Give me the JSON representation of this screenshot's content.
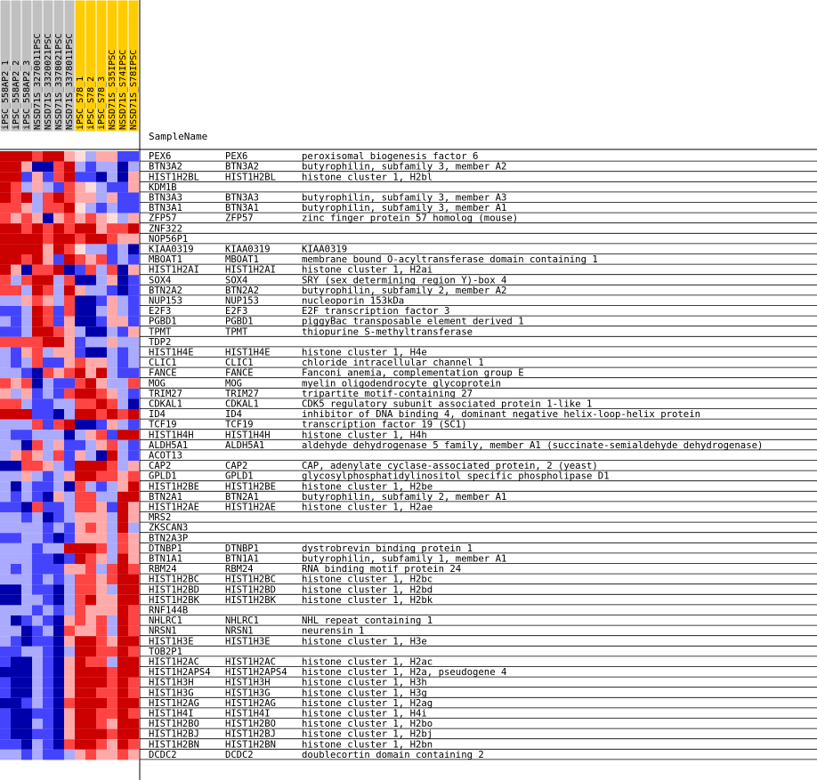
{
  "chart_data": {
    "type": "heatmap",
    "title": "SampleName",
    "columns": [
      "iPSC_558AP2_1",
      "iPSC_558AP2_2",
      "iPSC_558AP2_3",
      "NSSD71S_3270011PSC",
      "NSSD71S_3320021PSC",
      "NSSD71S_3378021PSC",
      "NSSD71S_3378011PSC",
      "iPSC_S78_1",
      "iPSC_S78_2",
      "iPSC_S78_3",
      "NSSD71S_S35IPSC",
      "NSSD71S_S74IPSC",
      "NSSD71S_S78IPSC"
    ],
    "column_colors": [
      "#c0c0c0",
      "#c0c0c0",
      "#c0c0c0",
      "#c0c0c0",
      "#c0c0c0",
      "#c0c0c0",
      "#c0c0c0",
      "#ffcc00",
      "#ffcc00",
      "#ffcc00",
      "#ffcc00",
      "#ffcc00",
      "#ffcc00"
    ],
    "rows": [
      {
        "name": "PEX6",
        "symbol": "PEX6",
        "desc": "peroxisomal biogenesis factor 6",
        "values": [
          3,
          3,
          3,
          2,
          3,
          3,
          1,
          0,
          -1,
          1,
          1,
          -2,
          -2
        ]
      },
      {
        "name": "BTN3A2",
        "symbol": "BTN3A2",
        "desc": "butyrophilin, subfamily 3, member A2",
        "values": [
          3,
          3,
          1,
          -3,
          -3,
          2,
          3,
          -1,
          -2,
          -1,
          -1,
          -3,
          -1
        ]
      },
      {
        "name": "HIST1H2BL",
        "symbol": "HIST1H2BL",
        "desc": "histone cluster 1, H2bl",
        "values": [
          3,
          3,
          -2,
          1,
          -2,
          2,
          3,
          -2,
          -2,
          -3,
          -1,
          -3,
          1
        ]
      },
      {
        "name": "KDM1B",
        "symbol": "",
        "desc": "",
        "values": [
          3,
          2,
          -1,
          1,
          -1,
          -2,
          2,
          1,
          0,
          -1,
          -2,
          -2,
          1
        ]
      },
      {
        "name": "BTN3A3",
        "symbol": "BTN3A3",
        "desc": "butyrophilin, subfamily 3, member A3",
        "values": [
          3,
          2,
          3,
          -1,
          2,
          3,
          2,
          1,
          1,
          -1,
          1,
          -2,
          -2
        ]
      },
      {
        "name": "BTN3A1",
        "symbol": "BTN3A1",
        "desc": "butyrophilin, subfamily 3, member A1",
        "values": [
          2,
          2,
          1,
          -1,
          2,
          2,
          3,
          0,
          -1,
          -2,
          -1,
          -2,
          -2
        ]
      },
      {
        "name": "ZFP57",
        "symbol": "ZFP57",
        "desc": "zinc finger protein 57 homolog (mouse)",
        "values": [
          2,
          1,
          2,
          1,
          -3,
          1,
          2,
          1,
          2,
          1,
          0,
          -1,
          1
        ]
      },
      {
        "name": "ZNF322",
        "symbol": "",
        "desc": "",
        "values": [
          3,
          3,
          2,
          3,
          2,
          3,
          2,
          3,
          3,
          1,
          2,
          2,
          3
        ]
      },
      {
        "name": "NOP56P1",
        "symbol": "",
        "desc": "",
        "values": [
          3,
          3,
          3,
          3,
          2,
          3,
          3,
          2,
          3,
          3,
          2,
          1,
          1
        ]
      },
      {
        "name": "KIAA0319",
        "symbol": "KIAA0319",
        "desc": "KIAA0319",
        "values": [
          3,
          3,
          3,
          3,
          1,
          3,
          2,
          0,
          -1,
          -1,
          -2,
          -1,
          -3
        ]
      },
      {
        "name": "MBOAT1",
        "symbol": "MBOAT1",
        "desc": "membrane bound O-acyltransferase domain containing 1",
        "values": [
          3,
          3,
          2,
          3,
          1,
          -2,
          3,
          2,
          1,
          2,
          -2,
          -1,
          -2
        ]
      },
      {
        "name": "HIST1H2AI",
        "symbol": "HIST1H2AI",
        "desc": "histone cluster 1, H2ai",
        "values": [
          3,
          1,
          -3,
          2,
          2,
          3,
          -3,
          -2,
          2,
          -1,
          2,
          -3,
          1
        ]
      },
      {
        "name": "SOX4",
        "symbol": "SOX4",
        "desc": "SRY (sex determining region Y)-box 4",
        "values": [
          2,
          -1,
          2,
          3,
          3,
          -1,
          2,
          -3,
          -3,
          -1,
          1,
          -3,
          -2
        ]
      },
      {
        "name": "BTN2A2",
        "symbol": "BTN2A2",
        "desc": "butyrophilin, subfamily 2, member A2",
        "values": [
          2,
          2,
          -1,
          3,
          2,
          -1,
          3,
          1,
          -1,
          -1,
          -2,
          -3,
          -2
        ]
      },
      {
        "name": "NUP153",
        "symbol": "NUP153",
        "desc": "nucleoporin 153kDa",
        "values": [
          -1,
          -1,
          1,
          2,
          1,
          -1,
          2,
          -3,
          -3,
          -2,
          1,
          -1,
          -2
        ]
      },
      {
        "name": "E2F3",
        "symbol": "E2F3",
        "desc": "E2F transcription factor 3",
        "values": [
          -2,
          -2,
          -1,
          3,
          2,
          -2,
          2,
          -3,
          -3,
          -1,
          1,
          -1,
          -2
        ]
      },
      {
        "name": "PGBD1",
        "symbol": "PGBD1",
        "desc": "piggyBac transposable element derived 1",
        "values": [
          -1,
          -2,
          -1,
          3,
          2,
          -2,
          1,
          -3,
          -3,
          -2,
          1,
          1,
          -2
        ]
      },
      {
        "name": "TPMT",
        "symbol": "TPMT",
        "desc": "thiopurine S-methyltransferase",
        "values": [
          -2,
          -2,
          -1,
          3,
          3,
          2,
          1,
          -1,
          -3,
          -3,
          -1,
          -2,
          1
        ]
      },
      {
        "name": "TDP2",
        "symbol": "",
        "desc": "",
        "values": [
          2,
          2,
          2,
          2,
          3,
          3,
          1,
          -2,
          -1,
          -1,
          1,
          -1,
          -1
        ]
      },
      {
        "name": "HIST1H4E",
        "symbol": "HIST1H4E",
        "desc": "histone cluster 1, H4e",
        "values": [
          -1,
          -2,
          1,
          2,
          -1,
          1,
          1,
          -2,
          -3,
          -3,
          -1,
          -2,
          -1
        ]
      },
      {
        "name": "CLIC1",
        "symbol": "CLIC1",
        "desc": "chloride intracellular channel 1",
        "values": [
          -1,
          -2,
          -1,
          2,
          -2,
          -2,
          1,
          2,
          1,
          1,
          -1,
          -2,
          -1
        ]
      },
      {
        "name": "FANCE",
        "symbol": "FANCE",
        "desc": "Fanconi anemia, complementation group E",
        "values": [
          -1,
          -1,
          -2,
          -3,
          2,
          1,
          2,
          3,
          1,
          3,
          -1,
          -2,
          -2
        ]
      },
      {
        "name": "MOG",
        "symbol": "MOG",
        "desc": "myelin oligodendrocyte glycoprotein",
        "values": [
          2,
          1,
          2,
          -3,
          -1,
          -2,
          -2,
          2,
          3,
          1,
          -1,
          -1,
          2
        ]
      },
      {
        "name": "TRIM27",
        "symbol": "TRIM27",
        "desc": "tripartite motif-containing 27",
        "values": [
          1,
          -1,
          1,
          -2,
          -1,
          -2,
          2,
          3,
          3,
          2,
          1,
          -1,
          -2
        ]
      },
      {
        "name": "CDKAL1",
        "symbol": "CDKAL1",
        "desc": "CDK5 regulatory subunit associated protein 1-like 1",
        "values": [
          2,
          2,
          -1,
          -2,
          -2,
          -1,
          -1,
          2,
          2,
          3,
          2,
          -1,
          -3
        ]
      },
      {
        "name": "ID4",
        "symbol": "ID4",
        "desc": "inhibitor of DNA binding 4, dominant negative helix-loop-helix protein",
        "values": [
          3,
          3,
          3,
          -2,
          -2,
          -3,
          -1,
          3,
          3,
          2,
          3,
          2,
          3
        ]
      },
      {
        "name": "TCF19",
        "symbol": "TCF19",
        "desc": "transcription factor 19 (SC1)",
        "values": [
          -1,
          -1,
          -1,
          2,
          -2,
          2,
          3,
          -3,
          -3,
          -2,
          1,
          -1,
          -2
        ]
      },
      {
        "name": "HIST1H4H",
        "symbol": "HIST1H4H",
        "desc": "histone cluster 1, H4h",
        "values": [
          -1,
          -2,
          -2,
          -1,
          -1,
          -1,
          -3,
          -1,
          1,
          2,
          -2,
          3,
          3
        ]
      },
      {
        "name": "ALDH5A1",
        "symbol": "ALDH5A1",
        "desc": "aldehyde dehydrogenase 5 family, member A1 (succinate-semialdehyde dehydrogenase)",
        "values": [
          -1,
          -1,
          -3,
          2,
          -1,
          1,
          -2,
          -2,
          -1,
          1,
          2,
          -1,
          -2
        ]
      },
      {
        "name": "ACOT13",
        "symbol": "",
        "desc": "",
        "values": [
          -1,
          1,
          2,
          1,
          -1,
          2,
          -2,
          1,
          -1,
          -3,
          3,
          -1,
          -2
        ]
      },
      {
        "name": "CAP2",
        "symbol": "CAP2",
        "desc": "CAP, adenylate cyclase-associated protein, 2 (yeast)",
        "values": [
          -3,
          -3,
          2,
          2,
          1,
          -1,
          -2,
          3,
          3,
          3,
          2,
          -1,
          1
        ]
      },
      {
        "name": "GPLD1",
        "symbol": "GPLD1",
        "desc": "glycosylphosphatidylinositol specific phospholipase D1",
        "values": [
          -1,
          -1,
          1,
          -1,
          -2,
          -1,
          1,
          3,
          3,
          2,
          2,
          1,
          2
        ]
      },
      {
        "name": "HIST1H2BE",
        "symbol": "HIST1H2BE",
        "desc": "histone cluster 1, H2be",
        "values": [
          -1,
          -3,
          -1,
          -2,
          -2,
          -1,
          -3,
          2,
          -1,
          -2,
          -1,
          1,
          3
        ]
      },
      {
        "name": "BTN2A1",
        "symbol": "BTN2A1",
        "desc": "butyrophilin, subfamily 2, member A1",
        "values": [
          -1,
          -2,
          -1,
          -2,
          -3,
          1,
          -1,
          2,
          2,
          -1,
          -1,
          3,
          3
        ]
      },
      {
        "name": "HIST1H2AE",
        "symbol": "HIST1H2AE",
        "desc": "histone cluster 1, H2ae",
        "values": [
          -2,
          -2,
          -3,
          2,
          -2,
          -2,
          -1,
          2,
          2,
          1,
          -2,
          3,
          1
        ]
      },
      {
        "name": "MRS2",
        "symbol": "",
        "desc": "",
        "values": [
          -1,
          -1,
          -2,
          -1,
          -3,
          -2,
          -1,
          1,
          1,
          1,
          -1,
          3,
          1
        ]
      },
      {
        "name": "ZKSCAN3",
        "symbol": "",
        "desc": "",
        "values": [
          -1,
          -1,
          -1,
          -1,
          -2,
          -1,
          -2,
          1,
          2,
          1,
          -1,
          3,
          -1
        ]
      },
      {
        "name": "BTN2A3P",
        "symbol": "",
        "desc": "",
        "values": [
          -2,
          -2,
          -1,
          -1,
          -2,
          -3,
          -2,
          1,
          1,
          1,
          -1,
          2,
          1
        ]
      },
      {
        "name": "DTNBP1",
        "symbol": "DTNBP1",
        "desc": "dystrobrevin binding protein 1",
        "values": [
          -1,
          -1,
          -1,
          -2,
          -1,
          -1,
          3,
          3,
          3,
          2,
          -1,
          2,
          1
        ]
      },
      {
        "name": "BTN1A1",
        "symbol": "BTN1A1",
        "desc": "butyrophilin, subfamily 1, member A1",
        "values": [
          -1,
          -1,
          -1,
          -2,
          -2,
          -3,
          -2,
          3,
          2,
          1,
          -1,
          3,
          1
        ]
      },
      {
        "name": "RBM24",
        "symbol": "RBM24",
        "desc": "RNA binding motif protein 24",
        "values": [
          -1,
          -2,
          -1,
          -2,
          -2,
          -2,
          1,
          1,
          2,
          -1,
          2,
          3,
          2
        ]
      },
      {
        "name": "HIST1H2BC",
        "symbol": "HIST1H2BC",
        "desc": "histone cluster 1, H2bc",
        "values": [
          -1,
          -1,
          -1,
          -2,
          -1,
          -2,
          -1,
          2,
          2,
          1,
          2,
          3,
          3
        ]
      },
      {
        "name": "HIST1H2BD",
        "symbol": "HIST1H2BD",
        "desc": "histone cluster 1, H2bd",
        "values": [
          -3,
          -3,
          -1,
          -2,
          -2,
          -3,
          -1,
          2,
          2,
          1,
          -1,
          3,
          3
        ]
      },
      {
        "name": "HIST1H2BK",
        "symbol": "HIST1H2BK",
        "desc": "histone cluster 1, H2bk",
        "values": [
          -3,
          -3,
          -1,
          -1,
          -2,
          -3,
          -1,
          2,
          3,
          1,
          1,
          3,
          3
        ]
      },
      {
        "name": "RNF144B",
        "symbol": "",
        "desc": "",
        "values": [
          -1,
          -1,
          -1,
          -2,
          -1,
          -2,
          -1,
          2,
          1,
          1,
          1,
          3,
          2
        ]
      },
      {
        "name": "NHLRC1",
        "symbol": "NHLRC1",
        "desc": "NHL repeat containing 1",
        "values": [
          -1,
          -3,
          -2,
          -1,
          -2,
          -3,
          1,
          2,
          1,
          2,
          -1,
          3,
          2
        ]
      },
      {
        "name": "NRSN1",
        "symbol": "NRSN1",
        "desc": "neurensin 1",
        "values": [
          -1,
          -1,
          -3,
          -2,
          -1,
          -3,
          2,
          1,
          1,
          2,
          -1,
          3,
          2
        ]
      },
      {
        "name": "HIST1H3E",
        "symbol": "HIST1H3E",
        "desc": "histone cluster 1, H3e",
        "values": [
          -1,
          -2,
          -3,
          -2,
          -2,
          -3,
          1,
          3,
          3,
          2,
          1,
          3,
          3
        ]
      },
      {
        "name": "TOB2P1",
        "symbol": "",
        "desc": "",
        "values": [
          -2,
          -2,
          -1,
          -1,
          -2,
          -3,
          -1,
          3,
          3,
          2,
          2,
          3,
          2
        ]
      },
      {
        "name": "HIST1H2AC",
        "symbol": "HIST1H2AC",
        "desc": "histone cluster 1, H2ac",
        "values": [
          -2,
          -3,
          -3,
          -1,
          -2,
          -3,
          1,
          3,
          2,
          2,
          -1,
          3,
          3
        ]
      },
      {
        "name": "HIST1H2APS4",
        "symbol": "HIST1H2APS4",
        "desc": "histone cluster 1, H2a, pseudogene 4",
        "values": [
          -3,
          -3,
          -3,
          -1,
          -2,
          -3,
          1,
          3,
          3,
          3,
          2,
          3,
          3
        ]
      },
      {
        "name": "HIST1H3H",
        "symbol": "HIST1H3H",
        "desc": "histone cluster 1, H3h",
        "values": [
          -2,
          -3,
          -3,
          -1,
          -2,
          -3,
          1,
          3,
          3,
          3,
          2,
          3,
          2
        ]
      },
      {
        "name": "HIST1H3G",
        "symbol": "HIST1H3G",
        "desc": "histone cluster 1, H3g",
        "values": [
          -2,
          -3,
          -3,
          -1,
          -2,
          -3,
          1,
          3,
          3,
          2,
          2,
          3,
          2
        ]
      },
      {
        "name": "HIST1H2AG",
        "symbol": "HIST1H2AG",
        "desc": "histone cluster 1, H2ag",
        "values": [
          -3,
          -3,
          -2,
          -1,
          -2,
          -3,
          2,
          3,
          3,
          3,
          2,
          3,
          3
        ]
      },
      {
        "name": "HIST1H4I",
        "symbol": "HIST1H4I",
        "desc": "histone cluster 1, H4i",
        "values": [
          -2,
          -3,
          -3,
          -2,
          -2,
          -3,
          1,
          3,
          3,
          2,
          2,
          3,
          2
        ]
      },
      {
        "name": "HIST1H2BO",
        "symbol": "HIST1H2BO",
        "desc": "histone cluster 1, H2bo",
        "values": [
          -2,
          -3,
          -3,
          -1,
          -2,
          -3,
          1,
          3,
          3,
          2,
          1,
          3,
          3
        ]
      },
      {
        "name": "HIST1H2BJ",
        "symbol": "HIST1H2BJ",
        "desc": "histone cluster 1, H2bj",
        "values": [
          -2,
          -3,
          -3,
          -2,
          -2,
          -3,
          1,
          3,
          3,
          3,
          2,
          3,
          3
        ]
      },
      {
        "name": "HIST1H2BN",
        "symbol": "HIST1H2BN",
        "desc": "histone cluster 1, H2bn",
        "values": [
          -2,
          -2,
          -3,
          -1,
          -2,
          -3,
          2,
          3,
          3,
          2,
          1,
          3,
          2
        ]
      },
      {
        "name": "DCDC2",
        "symbol": "DCDC2",
        "desc": "doublecortin domain containing 2",
        "values": [
          -1,
          -1,
          -2,
          -1,
          -2,
          -2,
          -1,
          1,
          2,
          1,
          1,
          2,
          1
        ]
      }
    ],
    "scale": {
      "min": -3,
      "max": 3
    },
    "colors": {
      "3": "#cc0000",
      "2": "#ff4444",
      "1": "#ffaaaa",
      "0": "#ffdddd",
      "-1": "#aaaaff",
      "-2": "#4444ff",
      "-3": "#0000aa"
    },
    "grid": true
  }
}
